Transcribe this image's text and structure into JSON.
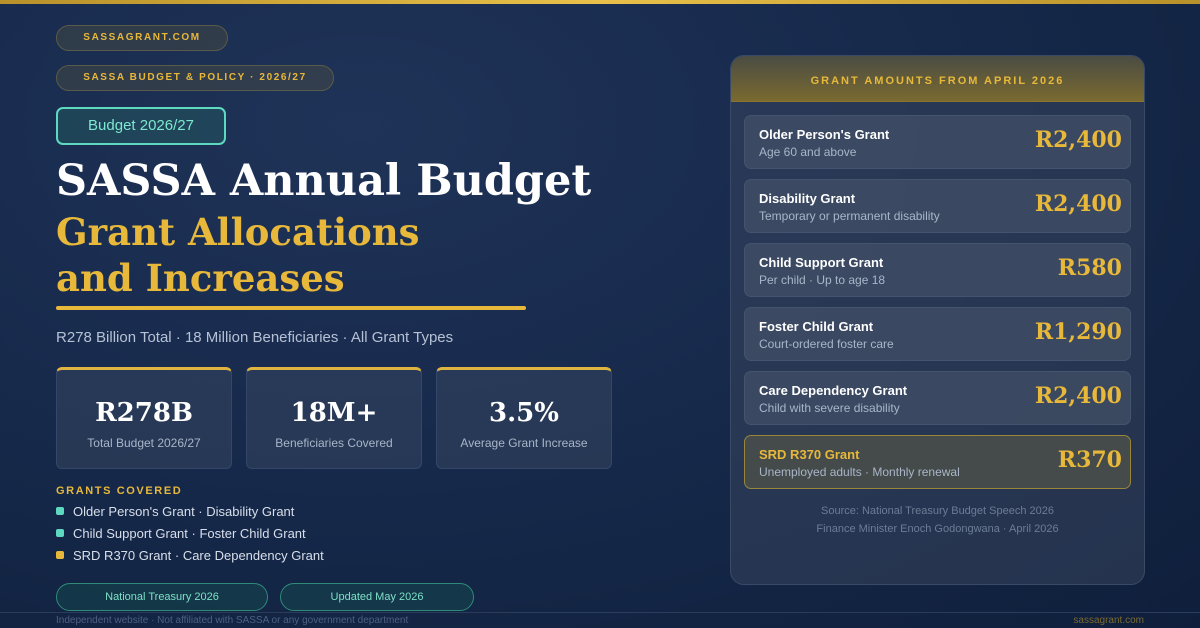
{
  "header": {
    "site_pill": "SASSAGRANT.COM",
    "category_pill": "SASSA BUDGET & POLICY · 2026/27",
    "badge": "Budget 2026/27",
    "title": "SASSA Annual Budget",
    "subtitle_lines": [
      "Grant Allocations",
      "and Increases"
    ],
    "tagline": "R278 Billion Total · 18 Million Beneficiaries · All Grant Types"
  },
  "stats": [
    {
      "value": "R278B",
      "label": "Total Budget 2026/27"
    },
    {
      "value": "18M+",
      "label": "Beneficiaries Covered"
    },
    {
      "value": "3.5%",
      "label": "Average Grant Increase"
    }
  ],
  "grants_covered": {
    "heading": "GRANTS COVERED",
    "items": [
      "Older Person's Grant · Disability Grant",
      "Child Support Grant · Foster Child Grant",
      "SRD R370 Grant · Care Dependency Grant"
    ]
  },
  "footer_pills": [
    "National Treasury 2026",
    "Updated May 2026"
  ],
  "footer": {
    "disclaimer": "Independent website · Not affiliated with SASSA or any government department",
    "site": "sassagrant.com"
  },
  "panel": {
    "heading": "GRANT AMOUNTS FROM APRIL 2026",
    "grants": [
      {
        "name": "Older Person's Grant",
        "detail": "Age 60 and above",
        "amount": "R2,400"
      },
      {
        "name": "Disability Grant",
        "detail": "Temporary or permanent disability",
        "amount": "R2,400"
      },
      {
        "name": "Child Support Grant",
        "detail": "Per child · Up to age 18",
        "amount": "R580"
      },
      {
        "name": "Foster Child Grant",
        "detail": "Court-ordered foster care",
        "amount": "R1,290"
      },
      {
        "name": "Care Dependency Grant",
        "detail": "Child with severe disability",
        "amount": "R2,400"
      },
      {
        "name": "SRD R370 Grant",
        "detail": "Unemployed adults · Monthly renewal",
        "amount": "R370"
      }
    ],
    "source_lines": [
      "Source: National Treasury Budget Speech 2026",
      "Finance Minister Enoch Godongwana · April 2026"
    ]
  }
}
